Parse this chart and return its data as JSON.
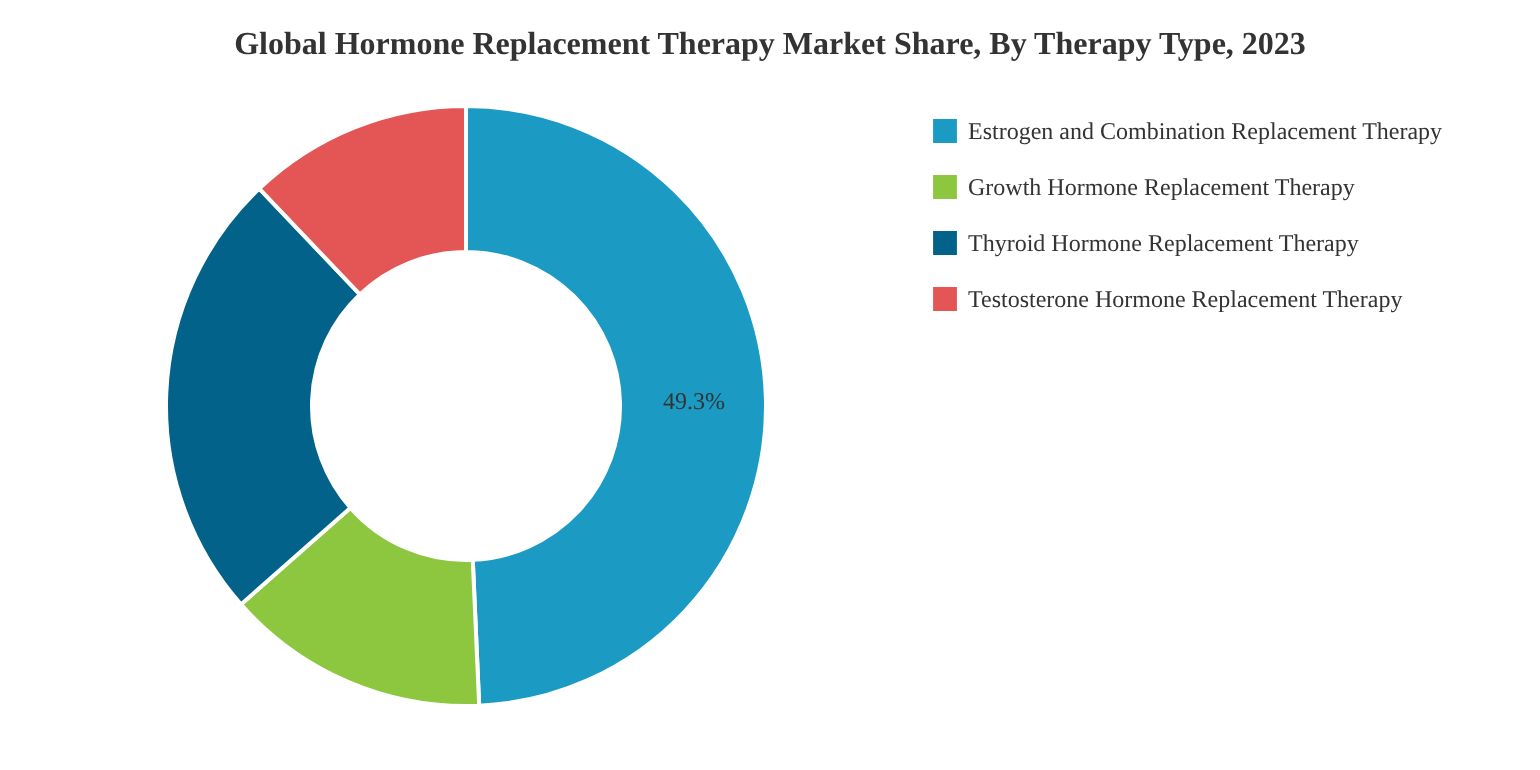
{
  "chart_data": {
    "type": "donut",
    "title": "Global Hormone Replacement Therapy Market Share, By Therapy Type, 2023",
    "categories": [
      "Estrogen and Combination Replacement Therapy",
      "Growth Hormone Replacement Therapy",
      "Thyroid Hormone Replacement Therapy",
      "Testosterone Hormone Replacement Therapy"
    ],
    "values": [
      49.3,
      14.2,
      24.4,
      12.1
    ],
    "colors": [
      "#1b9ac4",
      "#8dc63f",
      "#03628a",
      "#e45555"
    ],
    "value_labels": [
      "49.3%",
      null,
      null,
      null
    ],
    "legend": "top right"
  }
}
